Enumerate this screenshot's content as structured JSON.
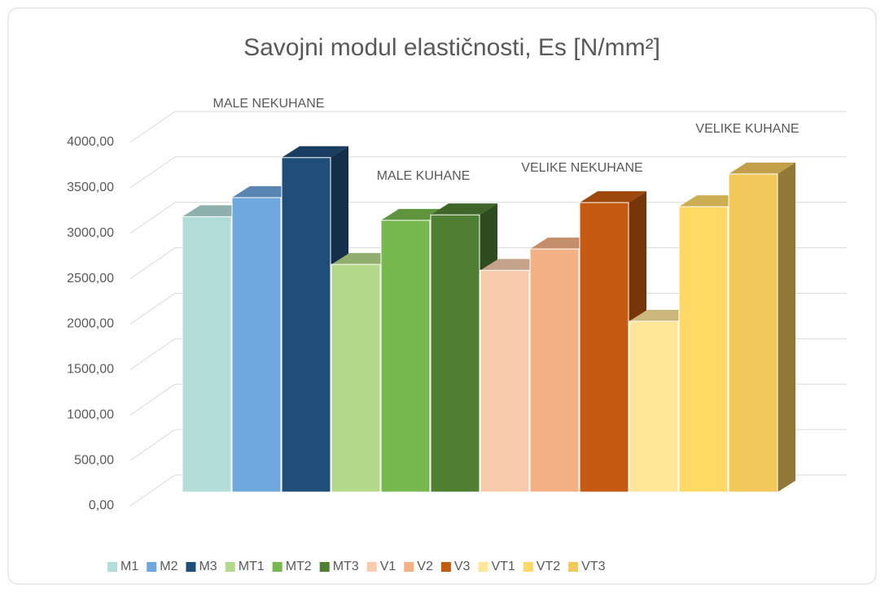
{
  "chart_data": {
    "type": "bar3d",
    "title": "Savojni modul elastičnosti,  Es [N/mm²]",
    "annotations": [
      "MALE NEKUHANE",
      "MALE KUHANE",
      "VELIKE NEKUHANE",
      "VELIKE KUHANE"
    ],
    "series": [
      {
        "name": "M1",
        "color": "#b2ddd8",
        "values": [
          3030
        ]
      },
      {
        "name": "M2",
        "color": "#6fa8dc",
        "values": [
          3240
        ]
      },
      {
        "name": "M3",
        "color": "#1f4e79",
        "values": [
          3680
        ]
      },
      {
        "name": "MT1",
        "color": "#b5d98a",
        "values": [
          2505
        ]
      },
      {
        "name": "MT2",
        "color": "#78b94f",
        "values": [
          2990
        ]
      },
      {
        "name": "MT3",
        "color": "#4f7f32",
        "values": [
          3050
        ]
      },
      {
        "name": "V1",
        "color": "#f8cbad",
        "values": [
          2440
        ]
      },
      {
        "name": "V2",
        "color": "#f4b183",
        "values": [
          2675
        ]
      },
      {
        "name": "V3",
        "color": "#c55a11",
        "values": [
          3185
        ]
      },
      {
        "name": "VT1",
        "color": "#ffe699",
        "values": [
          1880
        ]
      },
      {
        "name": "VT2",
        "color": "#ffd966",
        "values": [
          3140
        ]
      },
      {
        "name": "VT3",
        "color": "#f2c85b",
        "values": [
          3500
        ]
      }
    ],
    "ylim": [
      0,
      4000
    ],
    "yticks": [
      {
        "value": 0,
        "label": "0,00"
      },
      {
        "value": 500,
        "label": "500,00"
      },
      {
        "value": 1000,
        "label": "1000,00"
      },
      {
        "value": 1500,
        "label": "1500,00"
      },
      {
        "value": 2000,
        "label": "2000,00"
      },
      {
        "value": 2500,
        "label": "2500,00"
      },
      {
        "value": 3000,
        "label": "3000,00"
      },
      {
        "value": 3500,
        "label": "3500,00"
      },
      {
        "value": 4000,
        "label": "4000,00"
      }
    ],
    "grid": true,
    "legend": "bottom"
  }
}
